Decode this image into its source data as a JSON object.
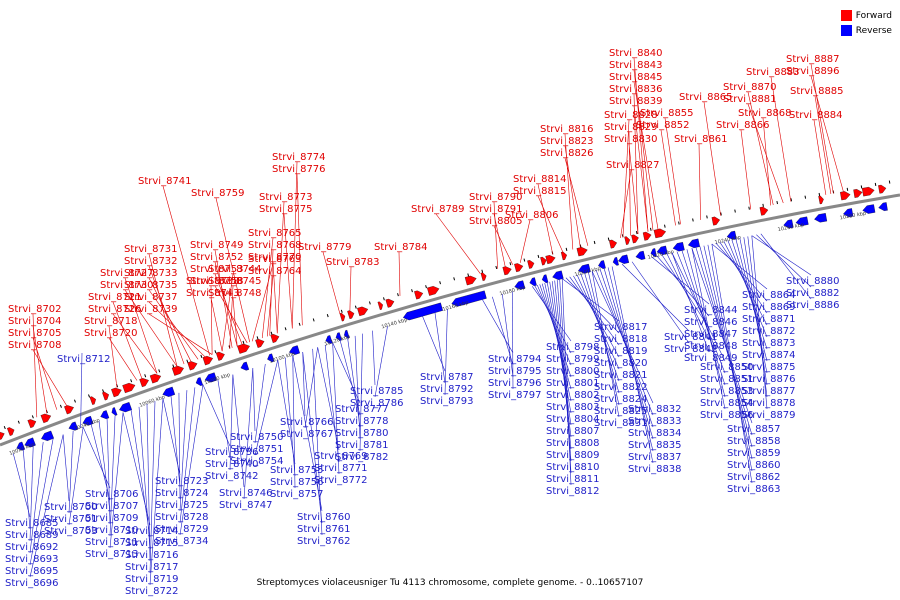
{
  "legend": {
    "forward_label": "Forward",
    "reverse_label": "Reverse",
    "forward_color": "#ff0000",
    "reverse_color": "#0000ff"
  },
  "caption": "Streptomyces violaceusniger Tu 4113 chromosome, complete genome. - 0..10657107",
  "axis_ticks": [
    "10020 kbp",
    "10040 kbp",
    "10060 kbp",
    "10080 kbp",
    "10100 kbp",
    "10120 kbp",
    "10140 kbp",
    "10160 kbp",
    "10180 kbp",
    "10200 kbp",
    "10220 kbp",
    "10240 kbp",
    "10260 kbp",
    "10280 kbp"
  ],
  "forward_genes": [
    "Strvi_8702",
    "Strvi_8704",
    "Strvi_8705",
    "Strvi_8708",
    "Strvi_8718",
    "Strvi_8720",
    "Strvi_8721",
    "Strvi_8726",
    "Strvi_8727",
    "Strvi_8730",
    "Strvi_8731",
    "Strvi_8732",
    "Strvi_8733",
    "Strvi_8735",
    "Strvi_8737",
    "Strvi_8739",
    "Strvi_8741",
    "Strvi_8738",
    "Strvi_8743",
    "Strvi_8744",
    "Strvi_8745",
    "Strvi_8748",
    "Strvi_8749",
    "Strvi_8752",
    "Strvi_8753",
    "Strvi_8758",
    "Strvi_8759",
    "Strvi_8763",
    "Strvi_8764",
    "Strvi_8765",
    "Strvi_8768",
    "Strvi_8770",
    "Strvi_8773",
    "Strvi_8775",
    "Strvi_8774",
    "Strvi_8776",
    "Strvi_8779",
    "Strvi_8783",
    "Strvi_8784",
    "Strvi_8789",
    "Strvi_8790",
    "Strvi_8791",
    "Strvi_8805",
    "Strvi_8806",
    "Strvi_8814",
    "Strvi_8815",
    "Strvi_8816",
    "Strvi_8823",
    "Strvi_8826",
    "Strvi_8827",
    "Strvi_8828",
    "Strvi_8829",
    "Strvi_8830",
    "Strvi_8836",
    "Strvi_8839",
    "Strvi_8840",
    "Strvi_8843",
    "Strvi_8845",
    "Strvi_8852",
    "Strvi_8855",
    "Strvi_8861",
    "Strvi_8865",
    "Strvi_8866",
    "Strvi_8868",
    "Strvi_8870",
    "Strvi_8881",
    "Strvi_8883",
    "Strvi_8884",
    "Strvi_8885",
    "Strvi_8887",
    "Strvi_8896"
  ],
  "reverse_genes": [
    "Strvi_8712",
    "Strvi_8685",
    "Strvi_8689",
    "Strvi_8692",
    "Strvi_8693",
    "Strvi_8695",
    "Strvi_8696",
    "Strvi_8700",
    "Strvi_8701",
    "Strvi_8703",
    "Strvi_8706",
    "Strvi_8707",
    "Strvi_8709",
    "Strvi_8710",
    "Strvi_8711",
    "Strvi_8713",
    "Strvi_8714",
    "Strvi_8715",
    "Strvi_8716",
    "Strvi_8717",
    "Strvi_8719",
    "Strvi_8722",
    "Strvi_8723",
    "Strvi_8724",
    "Strvi_8725",
    "Strvi_8728",
    "Strvi_8729",
    "Strvi_8734",
    "Strvi_8736",
    "Strvi_8740",
    "Strvi_8742",
    "Strvi_8746",
    "Strvi_8747",
    "Strvi_8750",
    "Strvi_8751",
    "Strvi_8754",
    "Strvi_8755",
    "Strvi_8756",
    "Strvi_8757",
    "Strvi_8760",
    "Strvi_8761",
    "Strvi_8762",
    "Strvi_8766",
    "Strvi_8767",
    "Strvi_8769",
    "Strvi_8771",
    "Strvi_8772",
    "Strvi_8777",
    "Strvi_8778",
    "Strvi_8780",
    "Strvi_8781",
    "Strvi_8782",
    "Strvi_8785",
    "Strvi_8786",
    "Strvi_8787",
    "Strvi_8792",
    "Strvi_8793",
    "Strvi_8794",
    "Strvi_8795",
    "Strvi_8796",
    "Strvi_8797",
    "Strvi_8798",
    "Strvi_8799",
    "Strvi_8800",
    "Strvi_8801",
    "Strvi_8802",
    "Strvi_8803",
    "Strvi_8804",
    "Strvi_8807",
    "Strvi_8808",
    "Strvi_8809",
    "Strvi_8810",
    "Strvi_8811",
    "Strvi_8812",
    "Strvi_8817",
    "Strvi_8818",
    "Strvi_8819",
    "Strvi_8820",
    "Strvi_8821",
    "Strvi_8822",
    "Strvi_8824",
    "Strvi_8825",
    "Strvi_8831",
    "Strvi_8832",
    "Strvi_8833",
    "Strvi_8834",
    "Strvi_8835",
    "Strvi_8837",
    "Strvi_8838",
    "Strvi_8841",
    "Strvi_8842",
    "Strvi_8844",
    "Strvi_8846",
    "Strvi_8847",
    "Strvi_8848",
    "Strvi_8849",
    "Strvi_8850",
    "Strvi_8851",
    "Strvi_8853",
    "Strvi_8854",
    "Strvi_8856",
    "Strvi_8857",
    "Strvi_8858",
    "Strvi_8859",
    "Strvi_8860",
    "Strvi_8862",
    "Strvi_8863",
    "Strvi_8864",
    "Strvi_8869",
    "Strvi_8871",
    "Strvi_8872",
    "Strvi_8873",
    "Strvi_8874",
    "Strvi_8875",
    "Strvi_8876",
    "Strvi_8877",
    "Strvi_8878",
    "Strvi_8879",
    "Strvi_8880",
    "Strvi_8882",
    "Strvi_8886"
  ]
}
